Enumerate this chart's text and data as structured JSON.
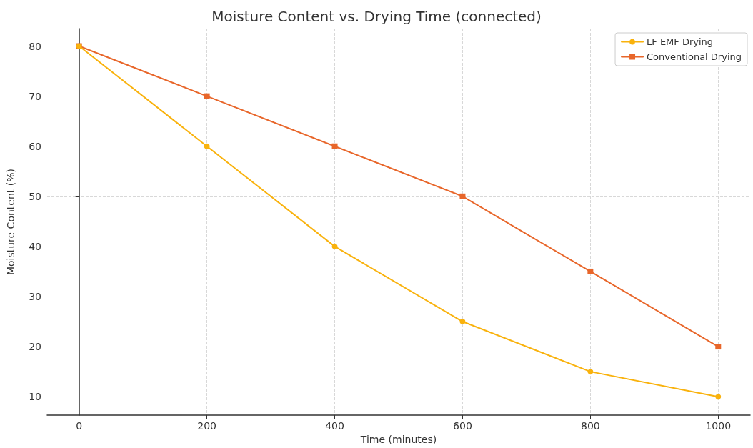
{
  "chart_data": {
    "type": "line",
    "title": "Moisture Content vs. Drying Time (connected)",
    "xlabel": "Time (minutes)",
    "ylabel": "Moisture Content (%)",
    "x": [
      0,
      200,
      400,
      600,
      800,
      1000
    ],
    "series": [
      {
        "name": "LF EMF Drying",
        "color": "#f9b20d",
        "marker": "circle",
        "values": [
          80,
          60,
          40,
          25,
          15,
          10
        ]
      },
      {
        "name": "Conventional Drying",
        "color": "#e8662a",
        "marker": "square",
        "values": [
          80,
          70,
          60,
          50,
          35,
          20
        ]
      }
    ],
    "xlim": [
      -50,
      1050
    ],
    "xticks": [
      0,
      200,
      400,
      600,
      800,
      1000
    ],
    "ylim": [
      6.3,
      83.5
    ],
    "yticks": [
      10,
      20,
      30,
      40,
      50,
      60,
      70,
      80
    ],
    "grid": true,
    "legend": "top right",
    "line_style": "solid"
  }
}
